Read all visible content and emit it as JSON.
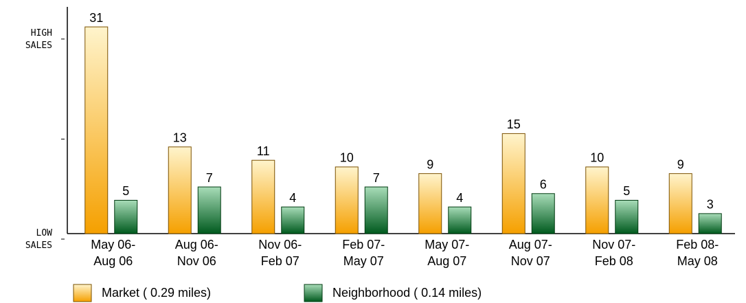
{
  "chart_data": {
    "type": "bar",
    "categories": [
      "May 06-\nAug 06",
      "Aug 06-\nNov 06",
      "Nov 06-\nFeb 07",
      "Feb 07-\nMay 07",
      "May 07-\nAug 07",
      "Aug 07-\nNov 07",
      "Nov 07-\nFeb 08",
      "Feb 08-\nMay 08"
    ],
    "series": [
      {
        "name": "Market ( 0.29 miles)",
        "color": "#f5a000",
        "values": [
          31,
          13,
          11,
          10,
          9,
          15,
          10,
          9
        ]
      },
      {
        "name": "Neighborhood ( 0.14 miles)",
        "color": "#0a6a2a",
        "values": [
          5,
          7,
          4,
          7,
          4,
          6,
          5,
          3
        ]
      }
    ],
    "ylim": [
      0,
      34
    ],
    "yticks": [
      {
        "value": 0,
        "label": "LOW\nSALES"
      },
      {
        "value": 15,
        "label": null
      },
      {
        "value": 30,
        "label": "HIGH\nSALES"
      }
    ],
    "legend": "bottom"
  }
}
